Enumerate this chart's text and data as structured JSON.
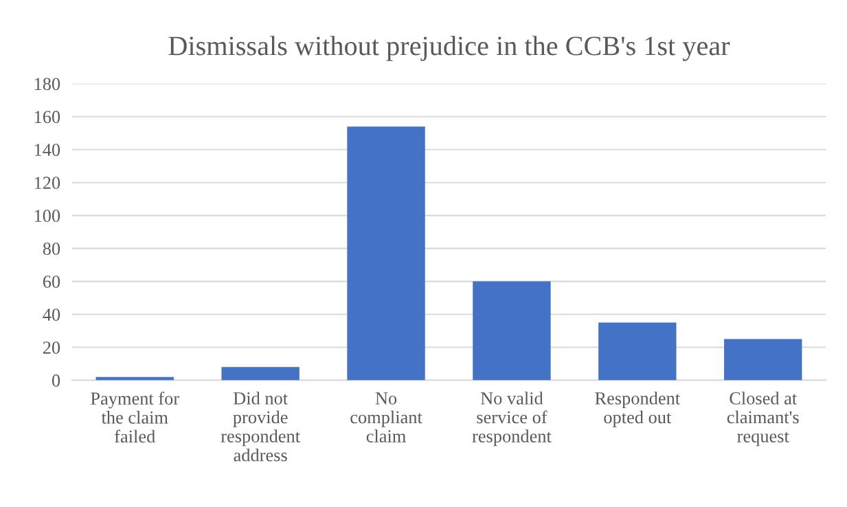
{
  "chart_data": {
    "type": "bar",
    "title": "Dismissals without prejudice in the CCB's 1st year",
    "categories": [
      "Payment for\nthe claim\nfailed",
      "Did not\nprovide\nrespondent\naddress",
      "No\ncompliant\nclaim",
      "No valid\nservice of\nrespondent",
      "Respondent\nopted out",
      "Closed at\nclaimant's\nrequest"
    ],
    "values": [
      2,
      8,
      154,
      60,
      35,
      25
    ],
    "color": "#4472c4",
    "ylim": [
      0,
      180
    ],
    "yticks": [
      0,
      20,
      40,
      60,
      80,
      100,
      120,
      140,
      160,
      180
    ],
    "grid": "y"
  }
}
